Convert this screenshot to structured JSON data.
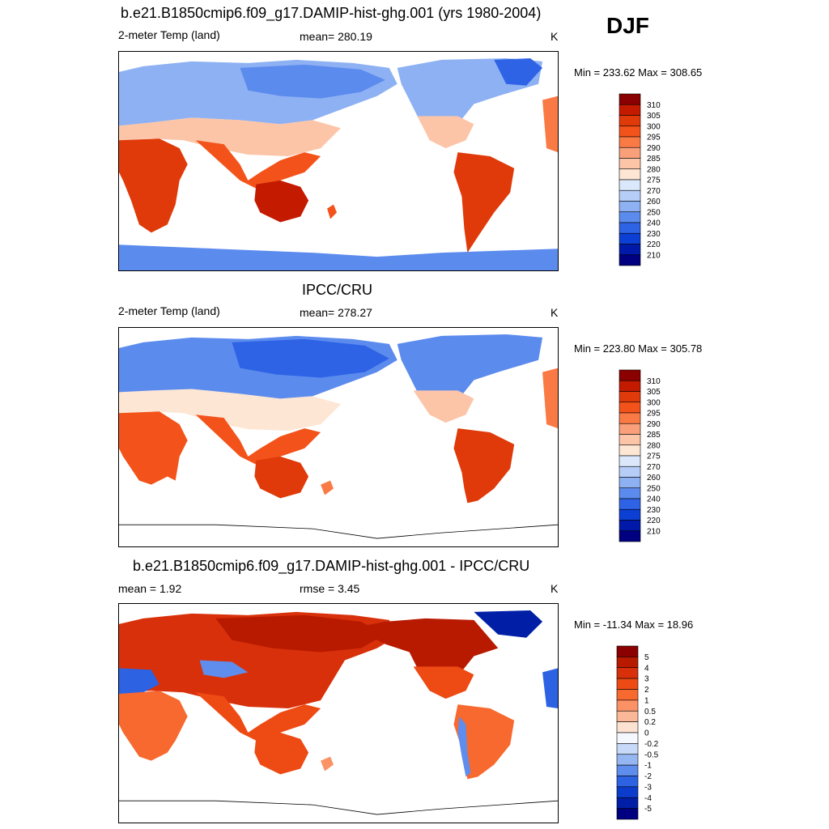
{
  "season": "DJF",
  "panels": [
    {
      "title": "b.e21.B1850cmip6.f09_g17.DAMIP-hist-ghg.001 (yrs 1980-2004)",
      "left_label": "2-meter Temp (land)",
      "center_label": "mean= 280.19",
      "units": "K",
      "minmax": "Min = 233.62 Max = 308.65",
      "colorbar_labels": [
        "310",
        "305",
        "300",
        "295",
        "290",
        "285",
        "280",
        "275",
        "270",
        "260",
        "250",
        "240",
        "230",
        "220",
        "210"
      ],
      "colors": [
        "#8b0000",
        "#c41a00",
        "#e03a0a",
        "#f3531a",
        "#fa7a45",
        "#f9a07a",
        "#fcc5a8",
        "#fde6d4",
        "#dbe8fb",
        "#b6cdf7",
        "#8db1f3",
        "#5c8bee",
        "#2e63e6",
        "#0c3fd4",
        "#0019a8",
        "#000080"
      ],
      "scheme": "model"
    },
    {
      "title": "IPCC/CRU",
      "left_label": "2-meter Temp (land)",
      "center_label": "mean= 278.27",
      "units": "K",
      "minmax": "Min = 223.80 Max = 305.78",
      "colorbar_labels": [
        "310",
        "305",
        "300",
        "295",
        "290",
        "285",
        "280",
        "275",
        "270",
        "260",
        "250",
        "240",
        "230",
        "220",
        "210"
      ],
      "colors": [
        "#8b0000",
        "#c41a00",
        "#e03a0a",
        "#f3531a",
        "#fa7a45",
        "#f9a07a",
        "#fcc5a8",
        "#fde6d4",
        "#dbe8fb",
        "#b6cdf7",
        "#8db1f3",
        "#5c8bee",
        "#2e63e6",
        "#0c3fd4",
        "#0019a8",
        "#000080"
      ],
      "scheme": "obs"
    },
    {
      "title": "b.e21.B1850cmip6.f09_g17.DAMIP-hist-ghg.001 - IPCC/CRU",
      "left_label": "mean =   1.92",
      "center_label": "rmse =   3.45",
      "units": "K",
      "minmax": "Min = -11.34 Max =  18.96",
      "colorbar_labels": [
        "5",
        "4",
        "3",
        "2",
        "1",
        "0.5",
        "0.2",
        "0",
        "-0.2",
        "-0.5",
        "-1",
        "-2",
        "-3",
        "-4",
        "-5"
      ],
      "colors": [
        "#8b0000",
        "#b81a00",
        "#d8300a",
        "#ee4a14",
        "#f7692e",
        "#fa9266",
        "#fbb898",
        "#fde2d2",
        "#f4f8fe",
        "#c7d9f8",
        "#96b6f2",
        "#5f8ded",
        "#2d62e3",
        "#0c3ccc",
        "#001fa6",
        "#000080"
      ],
      "scheme": "diff"
    }
  ]
}
